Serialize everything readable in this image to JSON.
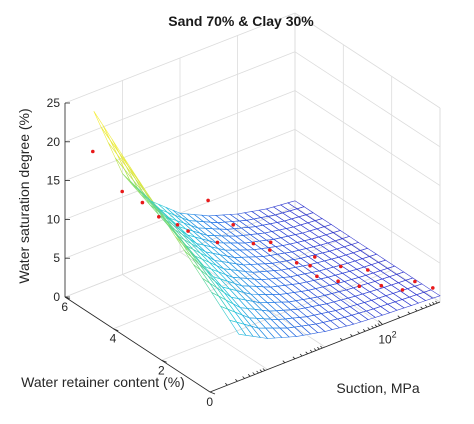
{
  "chart_data": {
    "type": "surface3d",
    "title": "Sand 70% & Clay 30%",
    "xlabel": "Water retainer content (%)",
    "ylabel": "Suction, MPa",
    "zlabel": "Water saturation degree (%)",
    "x_ticks": [
      "0",
      "2",
      "4",
      "6"
    ],
    "y_ticks": [
      {
        "base": "10",
        "exp": "2"
      }
    ],
    "z_ticks": [
      "0",
      "5",
      "10",
      "15",
      "20",
      "25"
    ],
    "xlim": [
      0,
      6
    ],
    "ylim_log10": [
      -1,
      3
    ],
    "zlim": [
      0,
      25
    ],
    "y_scale": "log",
    "grid": true,
    "surface": {
      "x": [
        0,
        0.75,
        1.5,
        2.25,
        3,
        3.75,
        4.5,
        5.25,
        6
      ],
      "log10_suction": [
        -0.5,
        0,
        0.5,
        1,
        1.5,
        2,
        2.5,
        3
      ],
      "z_at_x6": [
        22.5,
        13.0,
        8.0,
        5.0,
        3.2,
        2.0,
        1.2,
        0.8
      ],
      "z_at_x0": [
        6.0,
        4.0,
        2.8,
        2.0,
        1.5,
        1.2,
        1.0,
        0.8
      ]
    },
    "points": [
      {
        "x": 5.8,
        "log10_suction": -0.6,
        "z": 18.0
      },
      {
        "x": 5.3,
        "log10_suction": -0.3,
        "z": 13.0
      },
      {
        "x": 4.7,
        "log10_suction": -0.2,
        "z": 12.5
      },
      {
        "x": 4.5,
        "log10_suction": 0.0,
        "z": 10.5
      },
      {
        "x": 4.2,
        "log10_suction": 0.2,
        "z": 9.5
      },
      {
        "x": 4.0,
        "log10_suction": 0.3,
        "z": 8.8
      },
      {
        "x": 3.5,
        "log10_suction": 0.6,
        "z": 7.5
      },
      {
        "x": 4.6,
        "log10_suction": 0.9,
        "z": 9.8
      },
      {
        "x": 3.8,
        "log10_suction": 1.0,
        "z": 8.0
      },
      {
        "x": 3.2,
        "log10_suction": 1.1,
        "z": 6.5
      },
      {
        "x": 3.0,
        "log10_suction": 1.3,
        "z": 5.5
      },
      {
        "x": 3.2,
        "log10_suction": 1.4,
        "z": 5.8
      },
      {
        "x": 2.6,
        "log10_suction": 1.6,
        "z": 3.8
      },
      {
        "x": 2.0,
        "log10_suction": 1.7,
        "z": 3.0
      },
      {
        "x": 2.4,
        "log10_suction": 1.75,
        "z": 3.4
      },
      {
        "x": 1.6,
        "log10_suction": 1.9,
        "z": 2.6
      },
      {
        "x": 2.8,
        "log10_suction": 2.0,
        "z": 3.0
      },
      {
        "x": 1.2,
        "log10_suction": 2.1,
        "z": 2.2
      },
      {
        "x": 2.2,
        "log10_suction": 2.2,
        "z": 2.4
      },
      {
        "x": 1.0,
        "log10_suction": 2.4,
        "z": 1.8
      },
      {
        "x": 1.8,
        "log10_suction": 2.5,
        "z": 1.9
      },
      {
        "x": 0.6,
        "log10_suction": 2.6,
        "z": 1.5
      },
      {
        "x": 0.8,
        "log10_suction": 2.9,
        "z": 1.3
      },
      {
        "x": 0.3,
        "log10_suction": 3.0,
        "z": 1.2
      }
    ]
  }
}
